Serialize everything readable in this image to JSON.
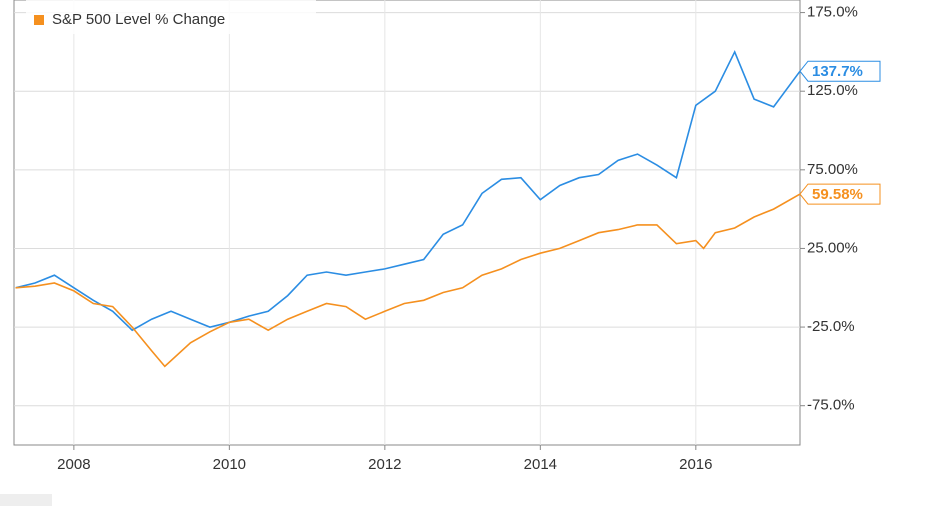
{
  "chart_data": {
    "type": "line",
    "xlim": [
      2007.23,
      2017.34
    ],
    "xticks": [
      2008,
      2010,
      2012,
      2014,
      2016
    ],
    "ylim": [
      -100,
      183
    ],
    "yticks": [
      {
        "value": 175,
        "label": "175.0%"
      },
      {
        "value": 125,
        "label": "125.0%"
      },
      {
        "value": 75,
        "label": "75.00%"
      },
      {
        "value": 25,
        "label": "25.00%"
      },
      {
        "value": -25,
        "label": "-25.0%"
      },
      {
        "value": -75,
        "label": "-75.0%"
      }
    ],
    "grid": true,
    "legend": "top-left",
    "series": [
      {
        "color": "#2b8de3",
        "x": [
          2007.25,
          2007.5,
          2007.75,
          2008.0,
          2008.25,
          2008.5,
          2008.75,
          2009.0,
          2009.25,
          2009.5,
          2009.75,
          2010.0,
          2010.25,
          2010.5,
          2010.75,
          2011.0,
          2011.25,
          2011.5,
          2011.75,
          2012.0,
          2012.25,
          2012.5,
          2012.75,
          2013.0,
          2013.25,
          2013.5,
          2013.75,
          2014.0,
          2014.25,
          2014.5,
          2014.75,
          2015.0,
          2015.25,
          2015.5,
          2015.75,
          2016.0,
          2016.25,
          2016.5,
          2016.75,
          2017.0,
          2017.34
        ],
        "values": [
          0,
          3,
          8,
          0,
          -8,
          -15,
          -27,
          -20,
          -15,
          -20,
          -25,
          -22,
          -18,
          -15,
          -5,
          8,
          10,
          8,
          10,
          12,
          15,
          18,
          34,
          40,
          60,
          69,
          70,
          56,
          65,
          70,
          72,
          81,
          85,
          78,
          70,
          116,
          125,
          150,
          120,
          115,
          137.7
        ],
        "value_labels": [
          null,
          null,
          null,
          null,
          null,
          null,
          null,
          null,
          null,
          null,
          null,
          null,
          null,
          null,
          null,
          null,
          null,
          null,
          null,
          null,
          null,
          null,
          null,
          null,
          null,
          null,
          null,
          null,
          null,
          null,
          null,
          null,
          null,
          null,
          null,
          null,
          null,
          null,
          null,
          null,
          "137.7%"
        ]
      },
      {
        "name": "S&P 500 Level % Change",
        "color": "#f5901f",
        "x": [
          2007.25,
          2007.5,
          2007.75,
          2008.0,
          2008.25,
          2008.5,
          2008.75,
          2009.0,
          2009.17,
          2009.5,
          2009.75,
          2010.0,
          2010.25,
          2010.5,
          2010.75,
          2011.0,
          2011.25,
          2011.5,
          2011.75,
          2012.0,
          2012.25,
          2012.5,
          2012.75,
          2013.0,
          2013.25,
          2013.5,
          2013.75,
          2014.0,
          2014.25,
          2014.5,
          2014.75,
          2015.0,
          2015.25,
          2015.5,
          2015.75,
          2016.0,
          2016.1,
          2016.25,
          2016.5,
          2016.75,
          2017.0,
          2017.34
        ],
        "values": [
          0,
          1,
          3,
          -2,
          -10,
          -12,
          -25,
          -40,
          -50,
          -35,
          -28,
          -22,
          -20,
          -27,
          -20,
          -15,
          -10,
          -12,
          -20,
          -15,
          -10,
          -8,
          -3,
          0,
          8,
          12,
          18,
          22,
          25,
          30,
          35,
          37,
          40,
          40,
          28,
          30,
          25,
          35,
          38,
          45,
          50,
          59.58
        ],
        "value_labels": [
          null,
          null,
          null,
          null,
          null,
          null,
          null,
          null,
          null,
          null,
          null,
          null,
          null,
          null,
          null,
          null,
          null,
          null,
          null,
          null,
          null,
          null,
          null,
          null,
          null,
          null,
          null,
          null,
          null,
          null,
          null,
          null,
          null,
          null,
          null,
          null,
          null,
          null,
          null,
          null,
          null,
          "59.58%"
        ]
      }
    ]
  }
}
